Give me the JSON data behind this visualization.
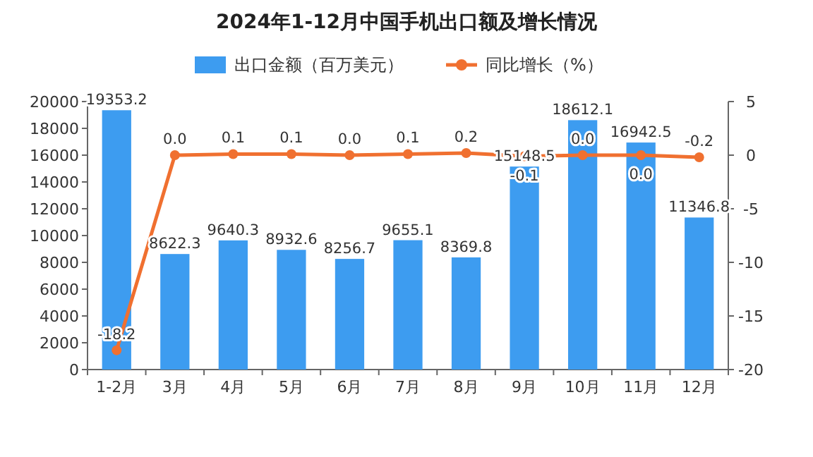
{
  "chart_data": {
    "type": "bar",
    "title": "2024年1-12月中国手机出口额及增长情况",
    "categories": [
      "1-2月",
      "3月",
      "4月",
      "5月",
      "6月",
      "7月",
      "8月",
      "9月",
      "10月",
      "11月",
      "12月"
    ],
    "series": [
      {
        "name": "出口金额（百万美元）",
        "color": "#3d9cf0",
        "values": [
          19353.2,
          8622.3,
          9640.3,
          8932.6,
          8256.7,
          9655.1,
          8369.8,
          15148.5,
          18612.1,
          16942.5,
          11346.8
        ]
      },
      {
        "name": "同比增长（%）",
        "type": "line",
        "axis": "y2",
        "color": "#f07030",
        "values": [
          -18.2,
          0.0,
          0.1,
          0.1,
          0.0,
          0.1,
          0.2,
          -0.1,
          0.0,
          0.0,
          -0.2
        ],
        "value_labels": [
          "-18.2",
          "0.0",
          "0.1",
          "0.1",
          "0.0",
          "0.1",
          "0.2",
          "-0.1",
          "0.0",
          "0.0",
          "-0.2"
        ]
      }
    ],
    "ylim": [
      0,
      20000
    ],
    "yticks": [
      0,
      2000,
      4000,
      6000,
      8000,
      10000,
      12000,
      14000,
      16000,
      18000,
      20000
    ],
    "y2lim": [
      -20,
      5
    ],
    "y2ticks": [
      -20,
      -15,
      -10,
      -5,
      0,
      5
    ],
    "data_labels": true,
    "legend": "top",
    "grid": false,
    "marker": "circle"
  }
}
